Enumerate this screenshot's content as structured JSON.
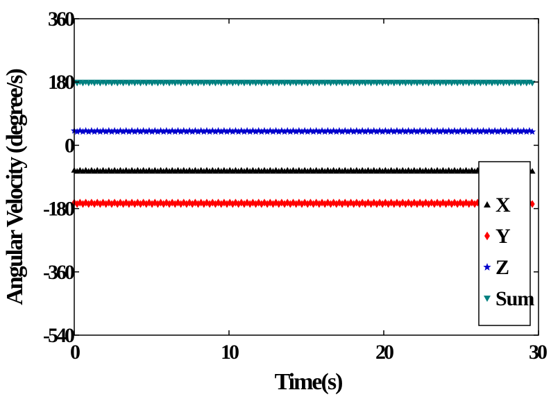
{
  "chart_data": {
    "type": "scatter",
    "title": "",
    "xlabel": "Time(s)",
    "ylabel": "Angular Velocity  (degree/s)",
    "xlim": [
      0,
      30
    ],
    "ylim": [
      -540,
      360
    ],
    "xticks": [
      0,
      10,
      20,
      30
    ],
    "xtick_labels": [
      "0",
      "10",
      "20",
      "30"
    ],
    "yticks": [
      360,
      180,
      0,
      -180,
      -360,
      -540
    ],
    "ytick_labels": [
      "360",
      "180",
      "0",
      "-180",
      "-360",
      "-540"
    ],
    "grid": false,
    "legend_position": "right",
    "x_start": 0,
    "x_end": 29.6,
    "point_count": 160,
    "series": [
      {
        "name": "X",
        "value": -72,
        "jitter": 3,
        "color": "#000000",
        "marker": "triangle-up"
      },
      {
        "name": "Y",
        "value": -165,
        "jitter": 4,
        "color": "#ff0000",
        "marker": "diamond"
      },
      {
        "name": "Z",
        "value": 40,
        "jitter": 3,
        "color": "#0000cc",
        "marker": "star"
      },
      {
        "name": "Sum",
        "value": 178,
        "jitter": 3,
        "color": "#008080",
        "marker": "triangle-down"
      }
    ]
  }
}
